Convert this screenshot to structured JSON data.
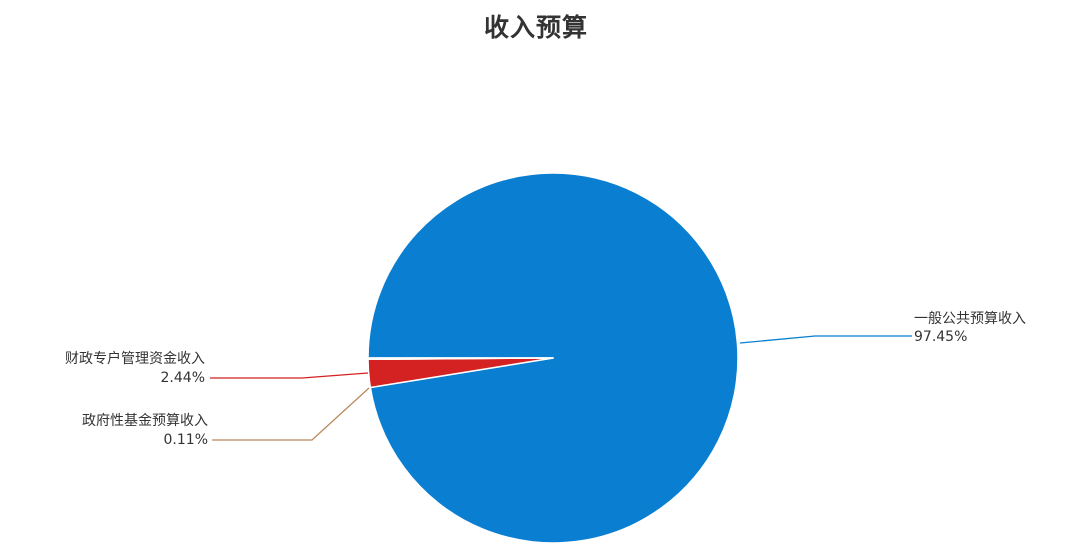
{
  "chart_data": {
    "type": "pie",
    "title": "收入预算",
    "slices": [
      {
        "name": "一般公共预算收入",
        "value": 97.45,
        "label": "97.45%",
        "color": "#0a7fd2"
      },
      {
        "name": "财政专户管理资金收入",
        "value": 2.44,
        "label": "2.44%",
        "color": "#d42121"
      },
      {
        "name": "政府性基金预算收入",
        "value": 0.11,
        "label": "0.11%",
        "color": "#b9895c"
      }
    ]
  }
}
